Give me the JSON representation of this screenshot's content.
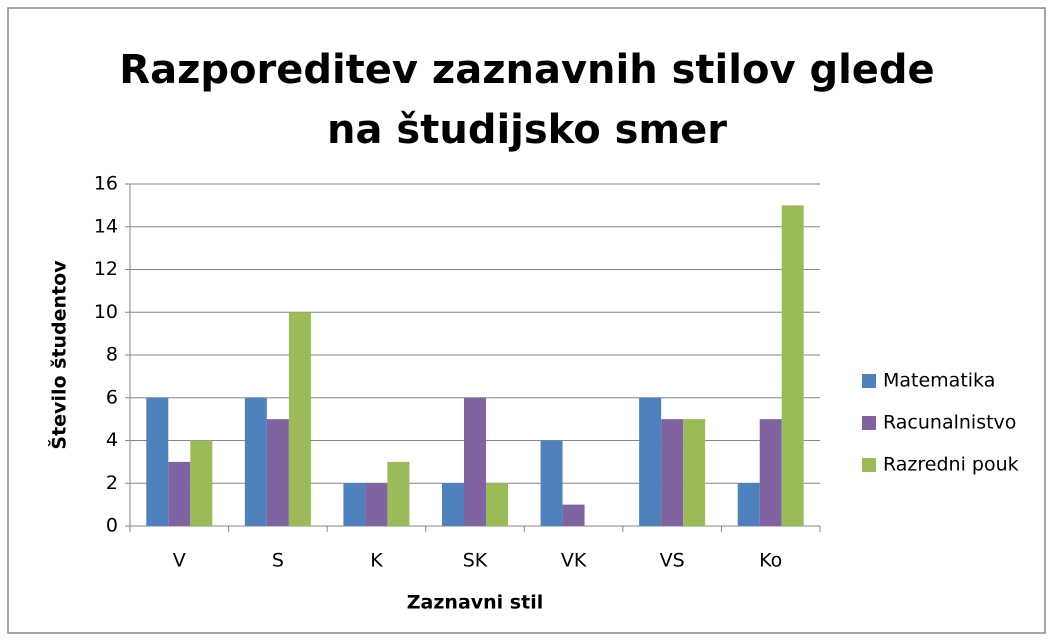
{
  "chart_data": {
    "type": "bar",
    "title": "Razporeditev zaznavnih stilov glede na študijsko smer",
    "x_label": "Zaznavni stil",
    "y_label": "Število študentov",
    "categories": [
      "V",
      "S",
      "K",
      "SK",
      "VK",
      "VS",
      "Ko"
    ],
    "series": [
      {
        "name": "Matematika",
        "color": "#4f81bd",
        "values": [
          6,
          6,
          2,
          2,
          4,
          6,
          2
        ]
      },
      {
        "name": "Racunalnistvo",
        "color": "#8064a2",
        "values": [
          3,
          5,
          2,
          6,
          1,
          5,
          5
        ]
      },
      {
        "name": "Razredni pouk",
        "color": "#9bbb59",
        "values": [
          4,
          10,
          3,
          2,
          0,
          5,
          15
        ]
      }
    ],
    "ylim": [
      0,
      16
    ],
    "yticks": [
      0,
      2,
      4,
      6,
      8,
      10,
      12,
      14,
      16
    ],
    "grid": true,
    "legend": "right"
  }
}
